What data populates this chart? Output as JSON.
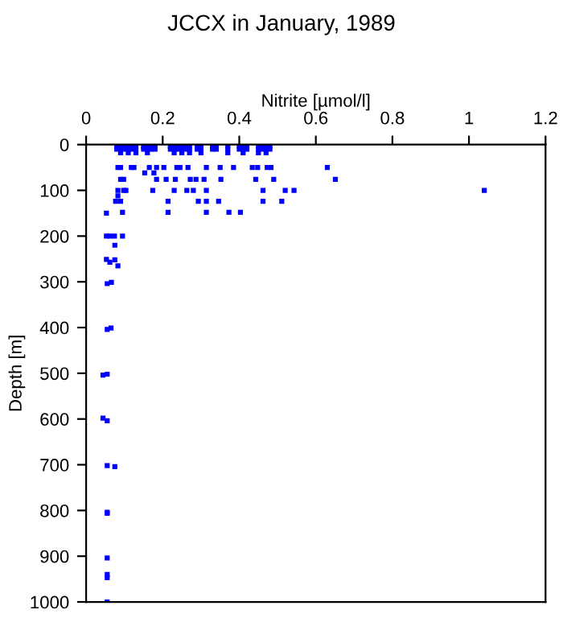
{
  "chart_data": {
    "type": "scatter",
    "title": "JCCX in January, 1989",
    "xlabel": "Nitrite [µmol/l]",
    "ylabel": "Depth [m]",
    "xlim": [
      0,
      1.2
    ],
    "ylim": [
      1000,
      0
    ],
    "xticks": [
      0,
      0.2,
      0.4,
      0.6,
      0.8,
      1,
      1.2
    ],
    "yticks": [
      0,
      100,
      200,
      300,
      400,
      500,
      600,
      700,
      800,
      900,
      1000
    ],
    "grid": false,
    "legend": false,
    "marker": "square",
    "series": [
      {
        "color": "#0000ff",
        "x": [
          0.08,
          0.09,
          0.1,
          0.11,
          0.12,
          0.13,
          0.15,
          0.16,
          0.17,
          0.18,
          0.22,
          0.23,
          0.24,
          0.25,
          0.26,
          0.27,
          0.29,
          0.3,
          0.33,
          0.34,
          0.37,
          0.4,
          0.41,
          0.42,
          0.45,
          0.46,
          0.47,
          0.48,
          0.08,
          0.09,
          0.1,
          0.11,
          0.12,
          0.13,
          0.15,
          0.16,
          0.17,
          0.18,
          0.22,
          0.23,
          0.24,
          0.25,
          0.26,
          0.27,
          0.29,
          0.3,
          0.33,
          0.34,
          0.37,
          0.4,
          0.41,
          0.42,
          0.45,
          0.46,
          0.47,
          0.48,
          0.09,
          0.11,
          0.13,
          0.16,
          0.23,
          0.25,
          0.27,
          0.3,
          0.37,
          0.41,
          0.45,
          0.47,
          0.083,
          0.09,
          0.118,
          0.125,
          0.165,
          0.184,
          0.203,
          0.237,
          0.245,
          0.266,
          0.314,
          0.35,
          0.385,
          0.434,
          0.448,
          0.473,
          0.483,
          0.63,
          0.153,
          0.177,
          0.09,
          0.098,
          0.184,
          0.209,
          0.233,
          0.272,
          0.287,
          0.308,
          0.352,
          0.443,
          0.49,
          0.651,
          0.083,
          0.098,
          0.104,
          0.174,
          0.23,
          0.263,
          0.28,
          0.314,
          0.462,
          0.52,
          0.543,
          1.04,
          0.083,
          0.077,
          0.09,
          0.214,
          0.293,
          0.314,
          0.346,
          0.462,
          0.511,
          0.053,
          0.095,
          0.214,
          0.314,
          0.373,
          0.403,
          0.053,
          0.062,
          0.074,
          0.095,
          0.075,
          0.053,
          0.062,
          0.075,
          0.083,
          0.055,
          0.066,
          0.055,
          0.065,
          0.044,
          0.055,
          0.044,
          0.055,
          0.055,
          0.075,
          0.055,
          0.055,
          0.055,
          0.055,
          0.055,
          0.055
        ],
        "values": [
          4,
          4,
          4,
          4,
          4,
          4,
          4,
          4,
          4,
          4,
          4,
          4,
          4,
          4,
          4,
          4,
          4,
          4,
          4,
          4,
          4,
          4,
          4,
          4,
          4,
          4,
          4,
          4,
          10,
          10,
          10,
          10,
          10,
          10,
          10,
          10,
          10,
          10,
          10,
          10,
          10,
          10,
          10,
          10,
          10,
          10,
          10,
          10,
          10,
          10,
          10,
          10,
          10,
          10,
          10,
          10,
          18,
          18,
          18,
          18,
          18,
          18,
          18,
          18,
          18,
          18,
          18,
          18,
          50,
          50,
          50,
          50,
          50,
          50,
          50,
          50,
          50,
          50,
          50,
          50,
          50,
          50,
          50,
          50,
          50,
          50,
          62,
          62,
          76,
          76,
          76,
          76,
          76,
          76,
          76,
          76,
          76,
          76,
          76,
          76,
          100,
          100,
          100,
          100,
          100,
          100,
          100,
          100,
          100,
          100,
          100,
          100,
          112,
          124,
          124,
          124,
          124,
          124,
          124,
          124,
          124,
          150,
          148,
          148,
          148,
          148,
          148,
          200,
          200,
          200,
          200,
          220,
          251,
          257,
          252,
          265,
          304,
          301,
          404,
          401,
          504,
          502,
          598,
          604,
          702,
          704,
          804,
          806,
          904,
          940,
          947,
          1000
        ]
      }
    ]
  }
}
